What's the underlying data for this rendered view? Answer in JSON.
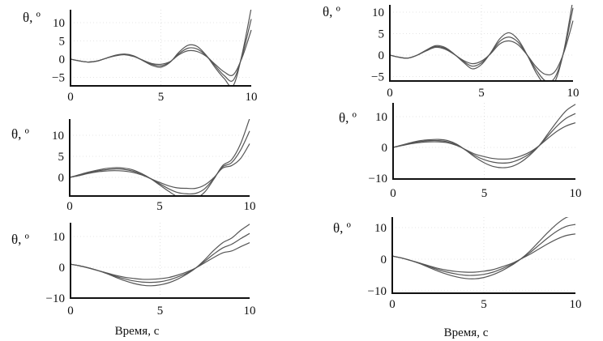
{
  "figure": {
    "xlabel_left": "Время, с",
    "xlabel_right": "Время, с"
  },
  "chart_data": [
    {
      "type": "line",
      "panel": "top-left",
      "ylabel": "θ, º",
      "xlabel": "",
      "xlim": [
        0,
        10
      ],
      "ylim": [
        -7.3,
        13.6
      ],
      "xticks": [
        "0",
        "5",
        "10"
      ],
      "yticks": [
        {
          "v": 10,
          "t": "10"
        },
        {
          "v": 5,
          "t": "5"
        },
        {
          "v": 0,
          "t": "0"
        },
        {
          "v": -5,
          "t": "−5"
        }
      ],
      "x": [
        0,
        0.5,
        1,
        1.5,
        2,
        2.5,
        3,
        3.5,
        4,
        4.5,
        5,
        5.5,
        6,
        6.5,
        7,
        7.5,
        8,
        8.5,
        9,
        9.5,
        10
      ],
      "series": [
        {
          "name": "upper",
          "values": [
            0,
            -0.5,
            -0.8,
            -0.5,
            0.3,
            1.1,
            1.4,
            0.9,
            -0.4,
            -1.7,
            -2.2,
            -0.9,
            1.9,
            3.8,
            3.5,
            1.1,
            -2.3,
            -5.3,
            -7.3,
            1.5,
            14
          ]
        },
        {
          "name": "middle",
          "values": [
            0,
            -0.5,
            -0.8,
            -0.5,
            0.3,
            1.0,
            1.3,
            0.8,
            -0.3,
            -1.4,
            -1.8,
            -0.8,
            1.5,
            3.0,
            2.8,
            1.0,
            -1.8,
            -4.5,
            -5.8,
            1.0,
            11
          ]
        },
        {
          "name": "lower",
          "values": [
            0,
            -0.5,
            -0.8,
            -0.5,
            0.3,
            0.9,
            1.2,
            0.7,
            -0.3,
            -1.2,
            -1.4,
            -0.7,
            1.2,
            2.3,
            2.1,
            0.8,
            -1.4,
            -3.5,
            -4.3,
            0.5,
            8
          ]
        }
      ]
    },
    {
      "type": "line",
      "panel": "top-right",
      "ylabel": "θ, º",
      "xlabel": "",
      "xlim": [
        0,
        10
      ],
      "ylim": [
        -6,
        11.7
      ],
      "xticks": [
        "0",
        "5",
        "10"
      ],
      "yticks": [
        {
          "v": 10,
          "t": "10"
        },
        {
          "v": 5,
          "t": "5"
        },
        {
          "v": 0,
          "t": "0"
        },
        {
          "v": -5,
          "t": "−5"
        }
      ],
      "x": [
        0,
        0.5,
        1,
        1.5,
        2,
        2.5,
        3,
        3.5,
        4,
        4.5,
        5,
        5.5,
        6,
        6.5,
        7,
        7.5,
        8,
        8.5,
        9,
        9.5,
        10
      ],
      "series": [
        {
          "name": "upper",
          "values": [
            0,
            -0.5,
            -0.7,
            0,
            1.2,
            2.2,
            1.8,
            0.3,
            -1.6,
            -3.2,
            -2.2,
            0.5,
            3.8,
            5.2,
            3.6,
            0,
            -4.2,
            -7,
            -6.3,
            1,
            13
          ]
        },
        {
          "name": "middle",
          "values": [
            0,
            -0.5,
            -0.7,
            0,
            1.1,
            2.0,
            1.6,
            0.2,
            -1.4,
            -2.6,
            -1.8,
            0.4,
            3.2,
            4.2,
            3.0,
            0,
            -3.5,
            -6,
            -5.3,
            0.8,
            11
          ]
        },
        {
          "name": "lower",
          "values": [
            0,
            -0.5,
            -0.7,
            0,
            1.0,
            1.8,
            1.4,
            0.2,
            -1.2,
            -2.0,
            -1.4,
            0.3,
            2.6,
            3.3,
            2.4,
            0,
            -2.8,
            -4.5,
            -3.9,
            0.6,
            8
          ]
        }
      ]
    },
    {
      "type": "line",
      "panel": "middle-left",
      "ylabel": "θ, º",
      "xlabel": "",
      "xlim": [
        0,
        10
      ],
      "ylim": [
        -4.4,
        13.8
      ],
      "xticks": [
        "0",
        "5",
        "10"
      ],
      "yticks": [
        {
          "v": 10,
          "t": "10"
        },
        {
          "v": 5,
          "t": "5"
        },
        {
          "v": 0,
          "t": "0"
        }
      ],
      "x": [
        0,
        0.5,
        1,
        1.5,
        2,
        2.5,
        3,
        3.5,
        4,
        4.5,
        5,
        5.5,
        6,
        6.5,
        7,
        7.5,
        8,
        8.5,
        9,
        9.5,
        10
      ],
      "series": [
        {
          "name": "upper",
          "values": [
            0,
            0.6,
            1.2,
            1.7,
            2.1,
            2.3,
            2.2,
            1.8,
            0.9,
            -0.3,
            -1.8,
            -3.3,
            -4.6,
            -5.1,
            -5,
            -3.5,
            -0.5,
            2.8,
            4.2,
            8,
            14
          ]
        },
        {
          "name": "middle",
          "values": [
            0,
            0.5,
            1.0,
            1.5,
            1.8,
            2.0,
            1.9,
            1.5,
            0.8,
            -0.3,
            -1.5,
            -2.7,
            -3.6,
            -3.9,
            -3.8,
            -2.7,
            -0.3,
            2.5,
            3.5,
            6.5,
            11
          ]
        },
        {
          "name": "lower",
          "values": [
            0,
            0.4,
            0.9,
            1.3,
            1.5,
            1.6,
            1.5,
            1.2,
            0.6,
            -0.3,
            -1.2,
            -2.0,
            -2.5,
            -2.6,
            -2.6,
            -1.8,
            -0.1,
            2.2,
            2.8,
            4.5,
            8
          ]
        }
      ]
    },
    {
      "type": "line",
      "panel": "middle-right",
      "ylabel": "θ, º",
      "xlabel": "",
      "xlim": [
        0,
        10
      ],
      "ylim": [
        -10.3,
        14.5
      ],
      "xticks": [
        "0",
        "5",
        "10"
      ],
      "yticks": [
        {
          "v": 10,
          "t": "10"
        },
        {
          "v": 0,
          "t": "0"
        },
        {
          "v": -10,
          "t": "−10"
        }
      ],
      "x": [
        0,
        0.5,
        1,
        1.5,
        2,
        2.5,
        3,
        3.5,
        4,
        4.5,
        5,
        5.5,
        6,
        6.5,
        7,
        7.5,
        8,
        8.5,
        9,
        9.5,
        10
      ],
      "series": [
        {
          "name": "upper",
          "values": [
            0,
            0.8,
            1.6,
            2.2,
            2.5,
            2.6,
            2.2,
            1,
            -1,
            -3.2,
            -5,
            -6.2,
            -6.6,
            -6.2,
            -4.8,
            -2.5,
            0.5,
            4.5,
            8.5,
            12,
            14
          ]
        },
        {
          "name": "middle",
          "values": [
            0,
            0.7,
            1.4,
            1.9,
            2.2,
            2.2,
            1.8,
            0.8,
            -0.9,
            -2.7,
            -4,
            -4.8,
            -5.1,
            -4.8,
            -3.7,
            -2,
            0.5,
            3.8,
            7,
            9.5,
            11
          ]
        },
        {
          "name": "lower",
          "values": [
            0,
            0.6,
            1.2,
            1.6,
            1.8,
            1.8,
            1.5,
            0.6,
            -0.8,
            -2.2,
            -3,
            -3.6,
            -3.8,
            -3.6,
            -2.8,
            -1.5,
            0.5,
            3,
            5.3,
            7,
            8
          ]
        }
      ]
    },
    {
      "type": "line",
      "panel": "bottom-left",
      "ylabel": "θ, º",
      "xlabel": "Время, с",
      "xlim": [
        0,
        10
      ],
      "ylim": [
        -10,
        14.5
      ],
      "xticks": [
        "0",
        "5",
        "10"
      ],
      "yticks": [
        {
          "v": 10,
          "t": "10"
        },
        {
          "v": 0,
          "t": "0"
        },
        {
          "v": -10,
          "t": "−10"
        }
      ],
      "x": [
        0,
        0.5,
        1,
        1.5,
        2,
        2.5,
        3,
        3.5,
        4,
        4.5,
        5,
        5.5,
        6,
        6.5,
        7,
        7.5,
        8,
        8.5,
        9,
        9.5,
        10
      ],
      "series": [
        {
          "name": "upper",
          "values": [
            1,
            0.5,
            -0.2,
            -1,
            -2,
            -3.2,
            -4.3,
            -5.2,
            -5.8,
            -6,
            -5.7,
            -5,
            -3.8,
            -2.2,
            -0.2,
            2.5,
            5.5,
            8,
            9.5,
            12,
            14
          ]
        },
        {
          "name": "middle",
          "values": [
            1,
            0.5,
            -0.2,
            -1,
            -1.9,
            -2.9,
            -3.7,
            -4.4,
            -4.8,
            -4.9,
            -4.7,
            -4.1,
            -3.1,
            -1.9,
            -0.2,
            2,
            4.3,
            6.3,
            7.5,
            9.3,
            11
          ]
        },
        {
          "name": "lower",
          "values": [
            1,
            0.5,
            -0.2,
            -1,
            -1.8,
            -2.6,
            -3.2,
            -3.6,
            -3.9,
            -3.9,
            -3.7,
            -3.3,
            -2.5,
            -1.5,
            -0.2,
            1.5,
            3.2,
            4.7,
            5.3,
            6.7,
            8
          ]
        }
      ]
    },
    {
      "type": "line",
      "panel": "bottom-right",
      "ylabel": "θ, º",
      "xlabel": "Время, с",
      "xlim": [
        0,
        10
      ],
      "ylim": [
        -10.8,
        13.3
      ],
      "xticks": [
        "0",
        "5",
        "10"
      ],
      "yticks": [
        {
          "v": 10,
          "t": "10"
        },
        {
          "v": 0,
          "t": "0"
        },
        {
          "v": -10,
          "t": "−10"
        }
      ],
      "x": [
        0,
        0.5,
        1,
        1.5,
        2,
        2.5,
        3,
        3.5,
        4,
        4.5,
        5,
        5.5,
        6,
        6.5,
        7,
        7.5,
        8,
        8.5,
        9,
        9.5,
        10
      ],
      "series": [
        {
          "name": "upper",
          "values": [
            1,
            0.4,
            -0.4,
            -1.4,
            -2.6,
            -3.8,
            -4.8,
            -5.6,
            -6.1,
            -6.2,
            -5.8,
            -4.9,
            -3.6,
            -2,
            0,
            2.5,
            5.5,
            8.5,
            11.2,
            13.2,
            14
          ]
        },
        {
          "name": "middle",
          "values": [
            1,
            0.4,
            -0.4,
            -1.3,
            -2.3,
            -3.3,
            -4.1,
            -4.7,
            -5.1,
            -5.1,
            -4.8,
            -4.1,
            -3,
            -1.7,
            0,
            2,
            4.4,
            6.8,
            8.9,
            10.4,
            11
          ]
        },
        {
          "name": "lower",
          "values": [
            1,
            0.4,
            -0.4,
            -1.2,
            -2.1,
            -2.9,
            -3.5,
            -3.9,
            -4.1,
            -4.1,
            -3.8,
            -3.3,
            -2.4,
            -1.4,
            0,
            1.5,
            3.2,
            4.9,
            6.4,
            7.5,
            8
          ]
        }
      ]
    }
  ]
}
